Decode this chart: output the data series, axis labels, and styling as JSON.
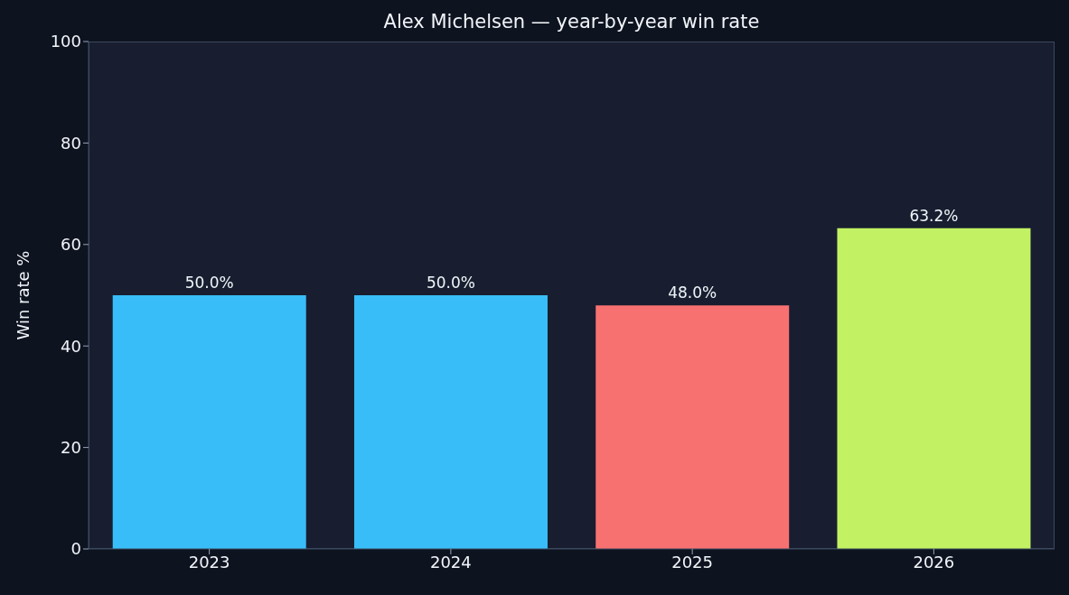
{
  "chart_data": {
    "type": "bar",
    "title": "Alex Michelsen — year-by-year win rate",
    "ylabel": "Win rate %",
    "categories": [
      "2023",
      "2024",
      "2025",
      "2026"
    ],
    "values": [
      50.0,
      50.0,
      48.0,
      63.2
    ],
    "colors": [
      "#38bdf8",
      "#38bdf8",
      "#f87171",
      "#c2f263"
    ],
    "value_labels": [
      "50.0%",
      "50.0%",
      "48.0%",
      "63.2%"
    ],
    "ylim": [
      0,
      100
    ],
    "yticks": [
      0,
      20,
      40,
      60,
      80,
      100
    ],
    "grid": false,
    "legend": false
  }
}
